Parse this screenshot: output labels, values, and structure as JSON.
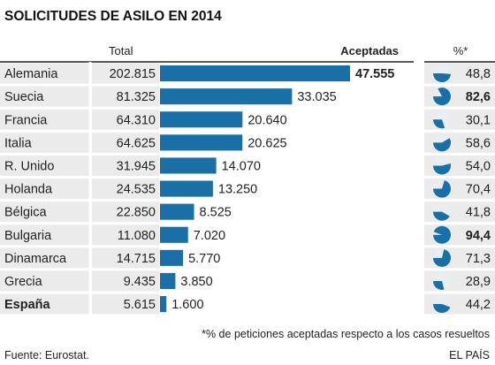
{
  "chart_data": {
    "type": "bar",
    "title": "SOLICITUDES DE ASILO EN 2014",
    "columns": {
      "total": "Total",
      "accepted": "Aceptadas",
      "percent": "%*"
    },
    "categories": [
      "Alemania",
      "Suecia",
      "Francia",
      "Italia",
      "R. Unido",
      "Holanda",
      "Bélgica",
      "Bulgaria",
      "Dinamarca",
      "Grecia",
      "España"
    ],
    "total": [
      "202.815",
      "81.325",
      "64.310",
      "64.625",
      "31.945",
      "24.535",
      "22.850",
      "11.080",
      "14.715",
      "9.435",
      "5.615"
    ],
    "accepted_labels": [
      "47.555",
      "33.035",
      "20.640",
      "20.625",
      "14.070",
      "13.250",
      "8.525",
      "7.020",
      "5.770",
      "3.850",
      "1.600"
    ],
    "series": [
      {
        "name": "Aceptadas",
        "values": [
          47555,
          33035,
          20640,
          20625,
          14070,
          13250,
          8525,
          7020,
          5770,
          3850,
          1600
        ]
      }
    ],
    "percent_labels": [
      "48,8",
      "82,6",
      "30,1",
      "58,6",
      "54,0",
      "70,4",
      "41,8",
      "94,4",
      "71,3",
      "28,9",
      "44,2"
    ],
    "percent_values": [
      48.8,
      82.6,
      30.1,
      58.6,
      54.0,
      70.4,
      41.8,
      94.4,
      71.3,
      28.9,
      44.2
    ],
    "highlight_rows": [
      "España"
    ],
    "bold_accepted": [
      "47.555"
    ],
    "bold_percent": [
      "82,6",
      "94,4"
    ],
    "footnote": "*% de peticiones aceptadas respecto a los casos resueltos",
    "source": "Fuente: Eurostat.",
    "credit": "EL PAÍS",
    "colors": {
      "bar": "#1a6fa6",
      "pie_fill": "#1a6fa6",
      "pie_bg": "#e9eef2",
      "row_bg": "#ebebeb",
      "header_rule": "#222222"
    }
  }
}
